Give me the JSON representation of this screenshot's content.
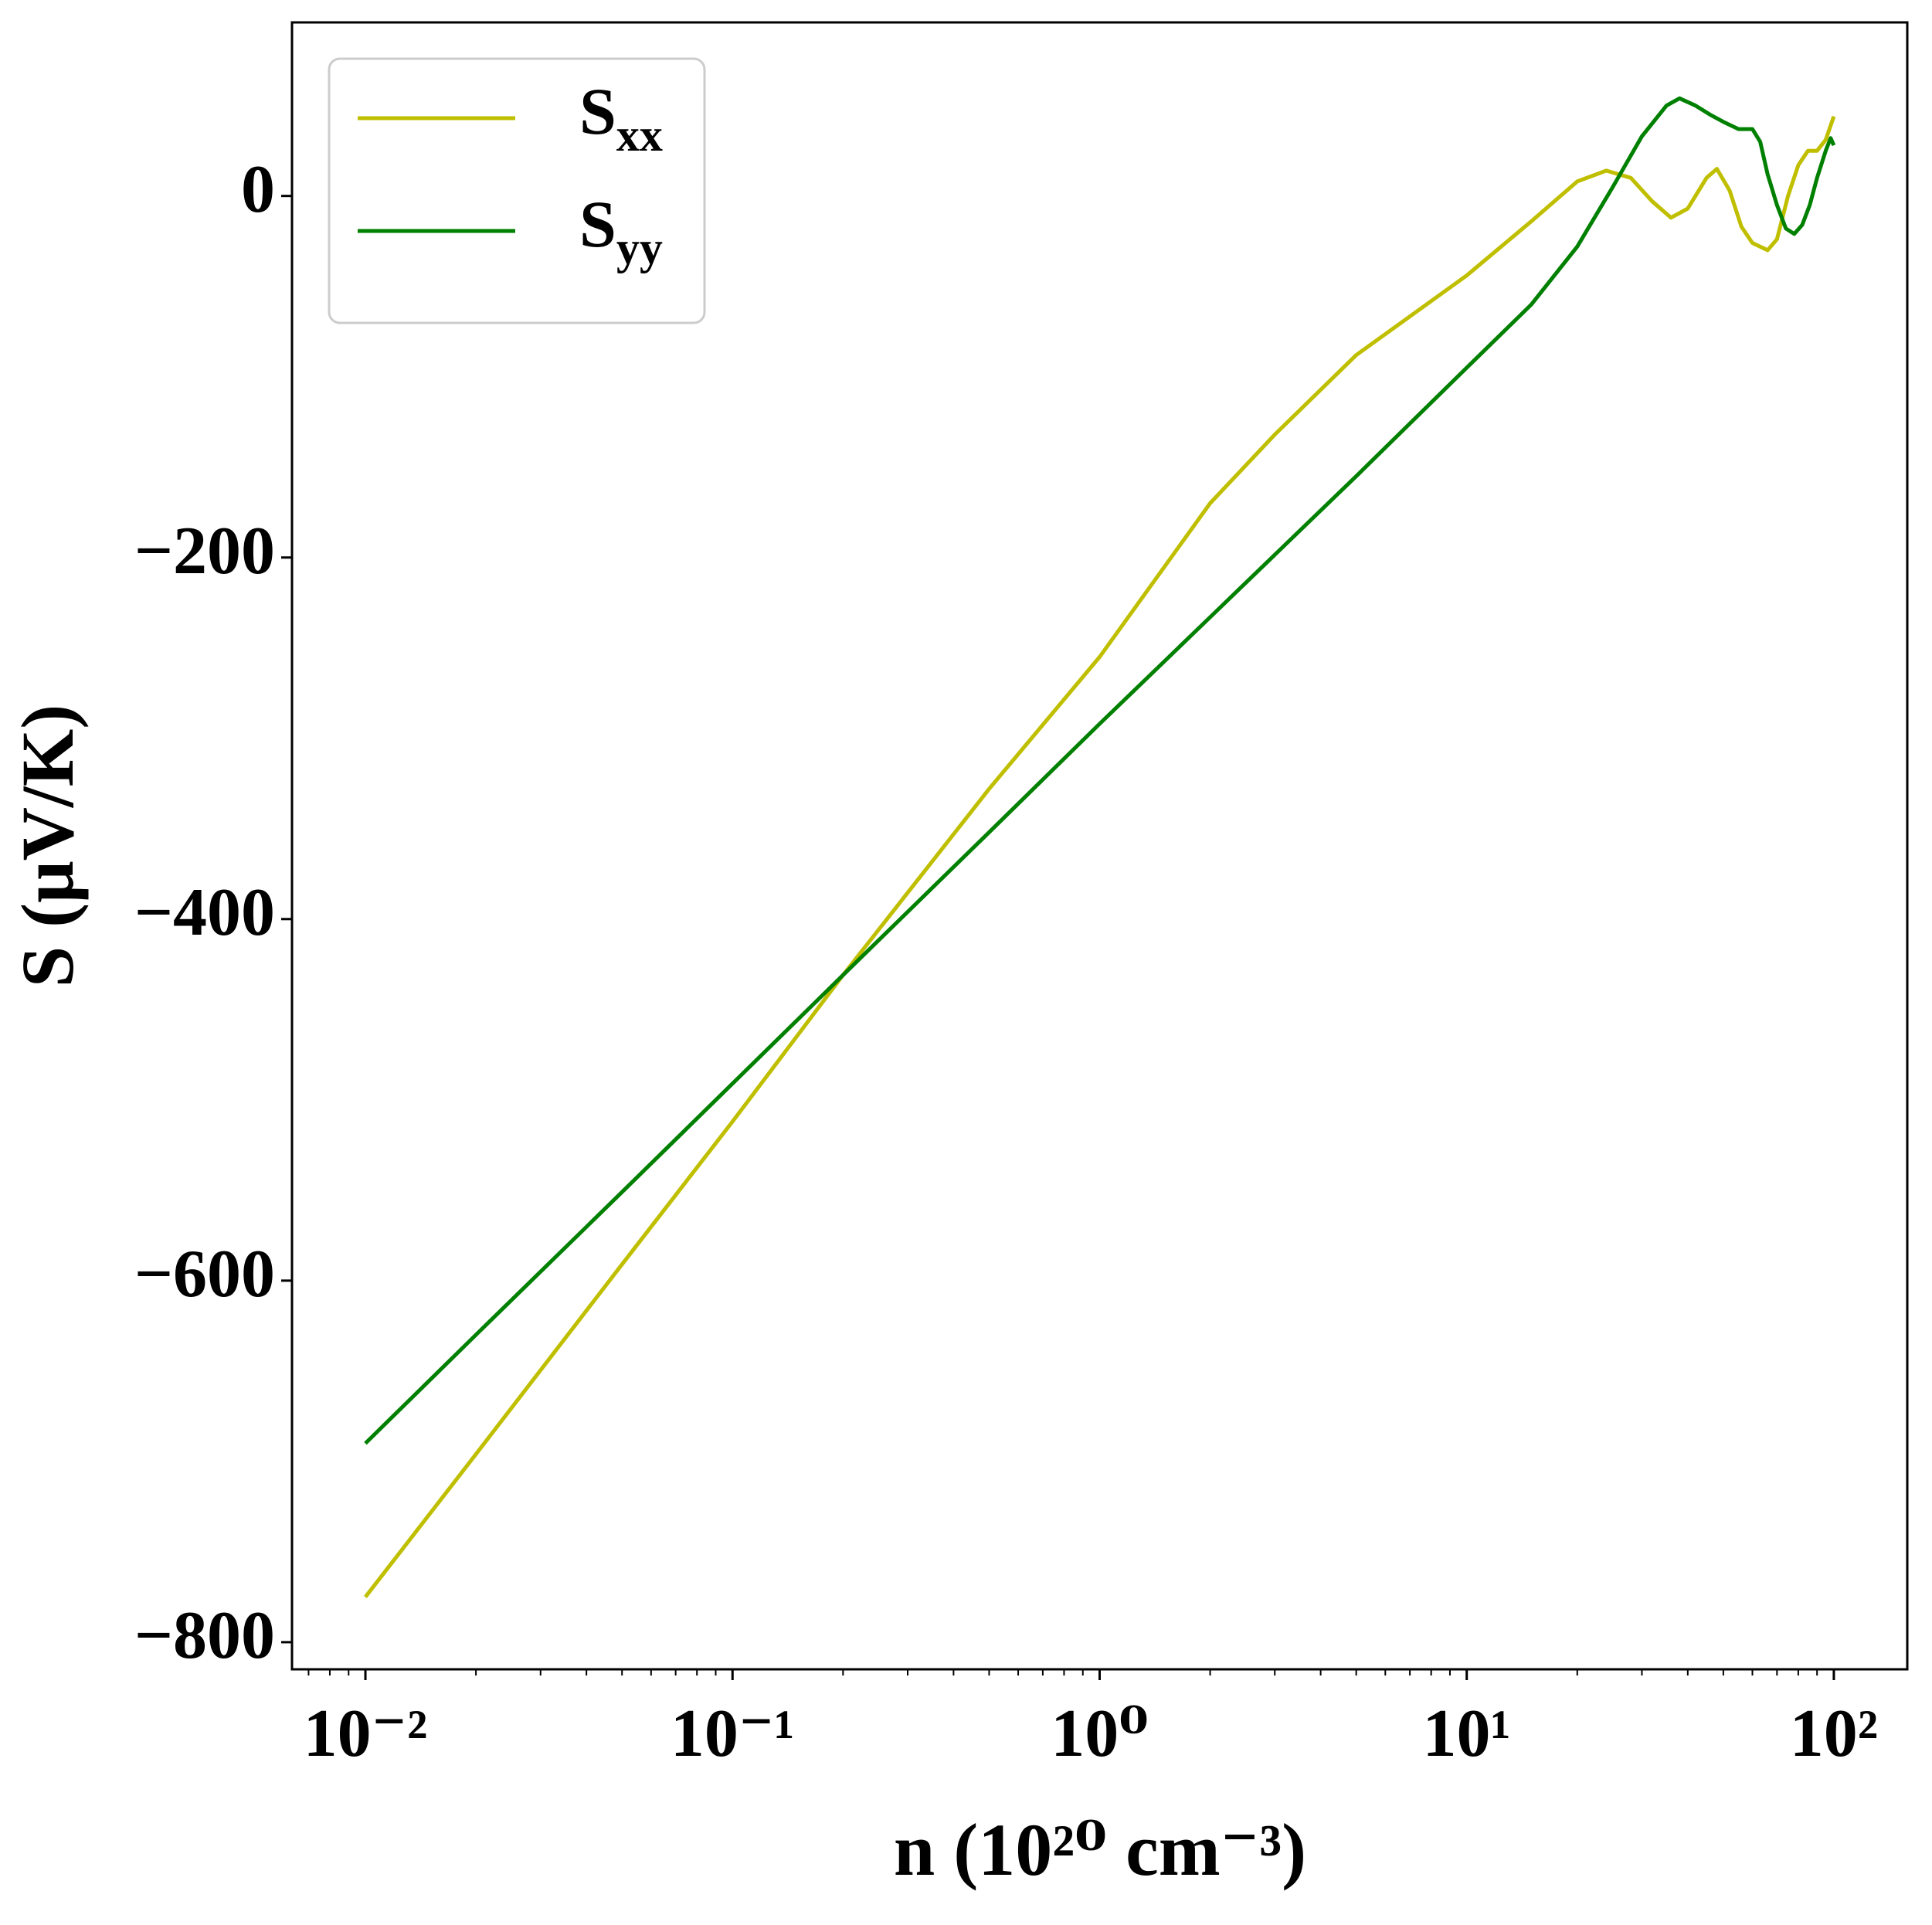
{
  "chart_data": {
    "type": "line",
    "xlabel": "n (10²⁰ cm⁻³)",
    "ylabel": "S (μV/K)",
    "xscale": "log",
    "xlim": [
      0.00631,
      158.5
    ],
    "ylim": [
      -815,
      96
    ],
    "xticks": [
      {
        "value": 0.01,
        "label": "10⁻²"
      },
      {
        "value": 0.1,
        "label": "10⁻¹"
      },
      {
        "value": 1,
        "label": "10⁰"
      },
      {
        "value": 10,
        "label": "10¹"
      },
      {
        "value": 100,
        "label": "10²"
      }
    ],
    "xminorticks": [
      0.007,
      0.008,
      0.009,
      0.02,
      0.03,
      0.04,
      0.05,
      0.06,
      0.07,
      0.08,
      0.09,
      0.2,
      0.3,
      0.4,
      0.5,
      0.6,
      0.7,
      0.8,
      0.9,
      2,
      3,
      4,
      5,
      6,
      7,
      8,
      9,
      20,
      30,
      40,
      50,
      60,
      70,
      80,
      90
    ],
    "yticks": [
      {
        "value": -800,
        "label": "−800"
      },
      {
        "value": -600,
        "label": "−600"
      },
      {
        "value": -400,
        "label": "−400"
      },
      {
        "value": -200,
        "label": "−200"
      },
      0
    ],
    "grid": false,
    "legend": "upper left",
    "series": [
      {
        "name": "Sxx",
        "color": "#bfbf00",
        "x": [
          0.01,
          0.02,
          0.05,
          0.1,
          0.2,
          0.5,
          1,
          2,
          3,
          5,
          10,
          15,
          20,
          24,
          28,
          32,
          36,
          40,
          45,
          48,
          52,
          56,
          60,
          66,
          70,
          75,
          80,
          85,
          90,
          95,
          100
        ],
        "values": [
          -775,
          -696,
          -591,
          -512,
          -431,
          -328,
          -255,
          -170,
          -132,
          -88,
          -44,
          -14,
          8,
          14,
          10,
          -3,
          -12,
          -7,
          10,
          15,
          3,
          -17,
          -26,
          -30,
          -24,
          0,
          17,
          25,
          25,
          31,
          44
        ]
      },
      {
        "name": "Syy",
        "color": "#008000",
        "x": [
          0.01,
          0.02,
          0.05,
          0.1,
          0.2,
          0.5,
          1,
          2,
          5,
          10,
          15,
          20,
          25,
          30,
          35,
          38,
          42,
          46,
          50,
          55,
          60,
          63,
          66,
          70,
          74,
          78,
          82,
          86,
          90,
          95,
          98,
          100
        ],
        "values": [
          -690,
          -630,
          -551,
          -491,
          -431,
          -352,
          -292,
          -233,
          -155,
          -95,
          -60,
          -28,
          5,
          33,
          50,
          54,
          50,
          45,
          41,
          37,
          37,
          30,
          12,
          -5,
          -18,
          -21,
          -16,
          -5,
          10,
          25,
          32,
          28
        ]
      }
    ]
  }
}
